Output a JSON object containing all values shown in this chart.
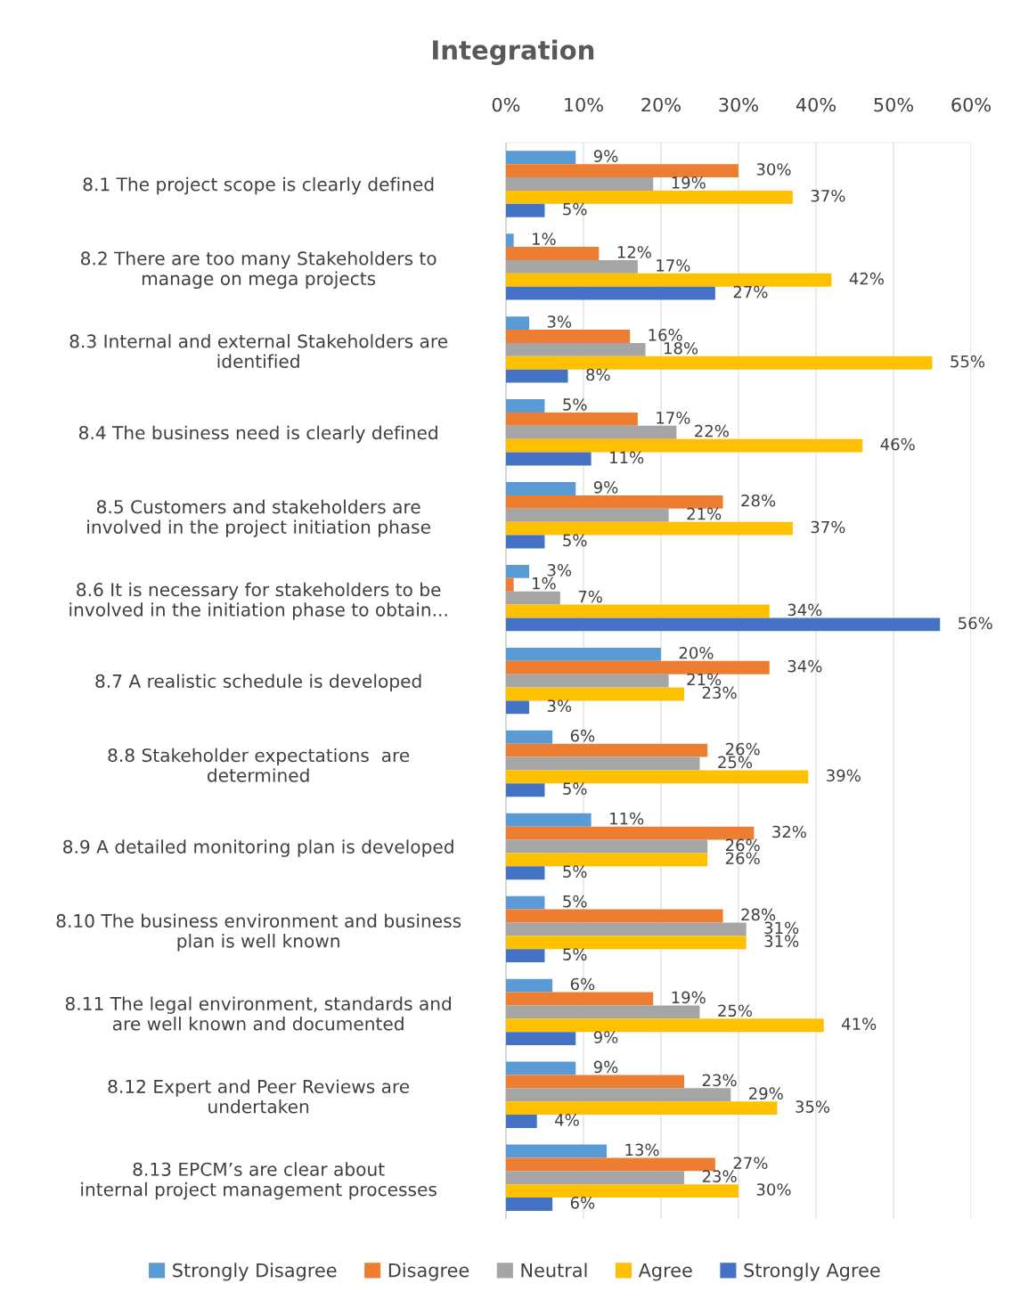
{
  "chart_data": {
    "type": "bar",
    "orientation": "horizontal",
    "title": "Integration",
    "categories": [
      "8.1 The project scope is clearly defined",
      "8.2 There are too many Stakeholders to\nmanage on mega projects",
      "8.3 Internal and external Stakeholders are\nidentified",
      "8.4 The business need is clearly defined",
      "8.5 Customers and stakeholders are\ninvolved in the project initiation phase",
      "8.6 It is necessary for stakeholders to be\ninvolved in the initiation phase to obtain...",
      "8.7 A realistic schedule is developed",
      "8.8 Stakeholder expectations  are\ndetermined",
      "8.9 A detailed monitoring plan is developed",
      "8.10 The business environment and business\nplan is well known",
      "8.11 The legal environment, standards and\nare well known and documented",
      "8.12 Expert and Peer Reviews are\nundertaken",
      "8.13 EPCM’s are clear about\ninternal project management processes"
    ],
    "series": [
      {
        "name": "Strongly Disagree",
        "color": "#5b9bd5",
        "values": [
          9,
          1,
          3,
          5,
          9,
          3,
          20,
          6,
          11,
          5,
          6,
          9,
          13
        ],
        "value_labels": [
          "9%",
          "1%",
          "3%",
          "5%",
          "9%",
          "3%",
          "20%",
          "6%",
          "11%",
          "5%",
          "6%",
          "9%",
          "13%"
        ]
      },
      {
        "name": "Disagree",
        "color": "#ed7d31",
        "values": [
          30,
          12,
          16,
          17,
          28,
          1,
          34,
          26,
          32,
          28,
          19,
          23,
          27
        ],
        "value_labels": [
          "30%",
          "12%",
          "16%",
          "17%",
          "28%",
          "1%",
          "34%",
          "26%",
          "32%",
          "28%",
          "19%",
          "23%",
          "27%"
        ]
      },
      {
        "name": "Neutral",
        "color": "#a5a5a5",
        "values": [
          19,
          17,
          18,
          22,
          21,
          7,
          21,
          25,
          26,
          31,
          25,
          29,
          23
        ],
        "value_labels": [
          "19%",
          "17%",
          "18%",
          "22%",
          "21%",
          "7%",
          "21%",
          "25%",
          "26%",
          "31%",
          "25%",
          "29%",
          "23%"
        ]
      },
      {
        "name": "Agree",
        "color": "#ffc000",
        "values": [
          37,
          42,
          55,
          46,
          37,
          34,
          23,
          39,
          26,
          31,
          41,
          35,
          30
        ],
        "value_labels": [
          "37%",
          "42%",
          "55%",
          "46%",
          "37%",
          "34%",
          "23%",
          "39%",
          "26%",
          "31%",
          "41%",
          "35%",
          "30%"
        ]
      },
      {
        "name": "Strongly Agree",
        "color": "#4472c4",
        "values": [
          5,
          27,
          8,
          11,
          5,
          56,
          3,
          5,
          5,
          5,
          9,
          4,
          6
        ],
        "value_labels": [
          "5%",
          "27%",
          "8%",
          "11%",
          "5%",
          "56%",
          "3%",
          "5%",
          "5%",
          "5%",
          "9%",
          "4%",
          "6%"
        ]
      }
    ],
    "xlim": [
      0,
      60
    ],
    "xticks": [
      {
        "value": 0,
        "label": "0%"
      },
      {
        "value": 10,
        "label": "10%"
      },
      {
        "value": 20,
        "label": "20%"
      },
      {
        "value": 30,
        "label": "30%"
      },
      {
        "value": 40,
        "label": "40%"
      },
      {
        "value": 50,
        "label": "50%"
      },
      {
        "value": 60,
        "label": "60%"
      }
    ],
    "grid": "x",
    "legend": "bottom"
  }
}
